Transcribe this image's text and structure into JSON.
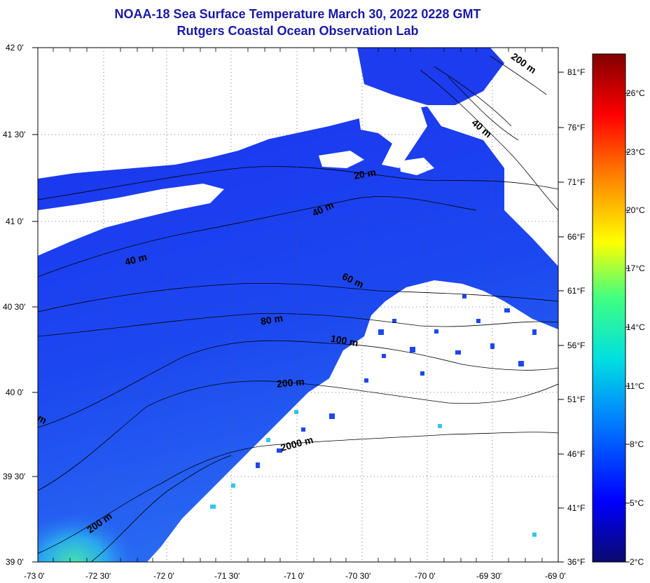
{
  "header": {
    "title": "NOAA-18 Sea Surface Temperature March 30, 2022 0228 GMT",
    "subtitle": "Rutgers Coastal Ocean Observation Lab"
  },
  "map": {
    "lat_labels": [
      "42 0'",
      "41 30'",
      "41 0'",
      "40 30'",
      "40 0'",
      "39 30'",
      "39 0'"
    ],
    "lon_labels": [
      "-73 0'",
      "-72 30'",
      "-72 0'",
      "-71 30'",
      "-71 0'",
      "-70 30'",
      "-70 0'",
      "-69 30'",
      "-69 0'"
    ],
    "extent": {
      "lon": [
        -73,
        -69
      ],
      "lat": [
        39,
        42
      ]
    },
    "contour_labels": [
      "20 m",
      "40 m",
      "40 m",
      "60 m",
      "80 m",
      "100 m",
      "200 m",
      "200 m",
      "2000 m",
      "200 m",
      "40 m",
      "m"
    ],
    "land_color": "#ffffff",
    "water_base_color": "#1e3cf0"
  },
  "fahrenheit_labels": [
    "81°F",
    "76°F",
    "71°F",
    "66°F",
    "61°F",
    "56°F",
    "51°F",
    "46°F",
    "41°F",
    "36°F"
  ],
  "celsius_labels": [
    "26°C",
    "23°C",
    "20°C",
    "17°C",
    "14°C",
    "11°C",
    "8°C",
    "5°C",
    "2°C"
  ],
  "colorbar": {
    "range_c": [
      2,
      28
    ],
    "stops": [
      "#0a0a6e",
      "#0000ff",
      "#0080ff",
      "#00e0e0",
      "#40ff80",
      "#ffff00",
      "#ff8000",
      "#ff0000",
      "#800000"
    ]
  }
}
